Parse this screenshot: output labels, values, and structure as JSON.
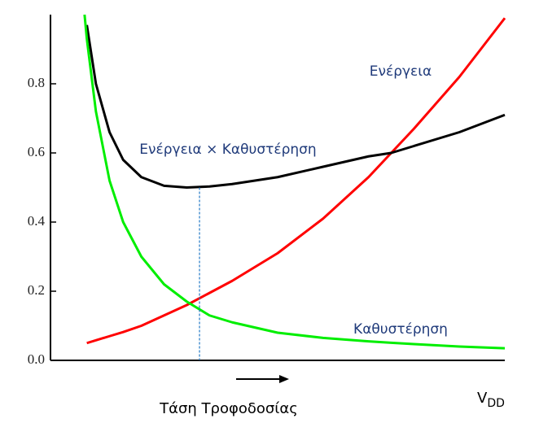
{
  "chart_data": {
    "type": "line",
    "x_label": "Τάση Τροφοδοσίας",
    "x_axis_symbol": "V",
    "x_axis_symbol_sub": "DD",
    "x": [
      0.075,
      0.08,
      0.1,
      0.13,
      0.16,
      0.2,
      0.25,
      0.3,
      0.35,
      0.4,
      0.5,
      0.6,
      0.7,
      0.75,
      0.8,
      0.9,
      1.0
    ],
    "xlim": [
      0,
      1
    ],
    "ylim": [
      0,
      1.0
    ],
    "yticks": [
      {
        "value": 0,
        "label": "0.0"
      },
      0.2,
      0.4,
      0.6,
      0.8
    ],
    "series": [
      {
        "name": "Ενέργεια",
        "color": "#ff0000",
        "values": [
          null,
          0.05,
          0.058,
          0.07,
          0.082,
          0.1,
          0.13,
          0.16,
          0.195,
          0.23,
          0.31,
          0.41,
          0.53,
          0.6,
          0.67,
          0.82,
          0.99
        ]
      },
      {
        "name": "Ενέργεια × Καθυστέρηση",
        "color": "#000000",
        "values": [
          null,
          0.97,
          0.8,
          0.66,
          0.58,
          0.53,
          0.505,
          0.5,
          0.503,
          0.51,
          0.53,
          0.56,
          0.59,
          0.6,
          0.62,
          0.66,
          0.71
        ]
      },
      {
        "name": "Καθυστέρηση",
        "color": "#00ee00",
        "values": [
          1.0,
          0.93,
          0.72,
          0.52,
          0.4,
          0.3,
          0.22,
          0.17,
          0.13,
          0.11,
          0.08,
          0.065,
          0.055,
          0.051,
          0.047,
          0.04,
          0.035
        ]
      }
    ],
    "min_marker": {
      "x": 0.328,
      "y": 0.5,
      "color": "#1f77c4"
    }
  }
}
